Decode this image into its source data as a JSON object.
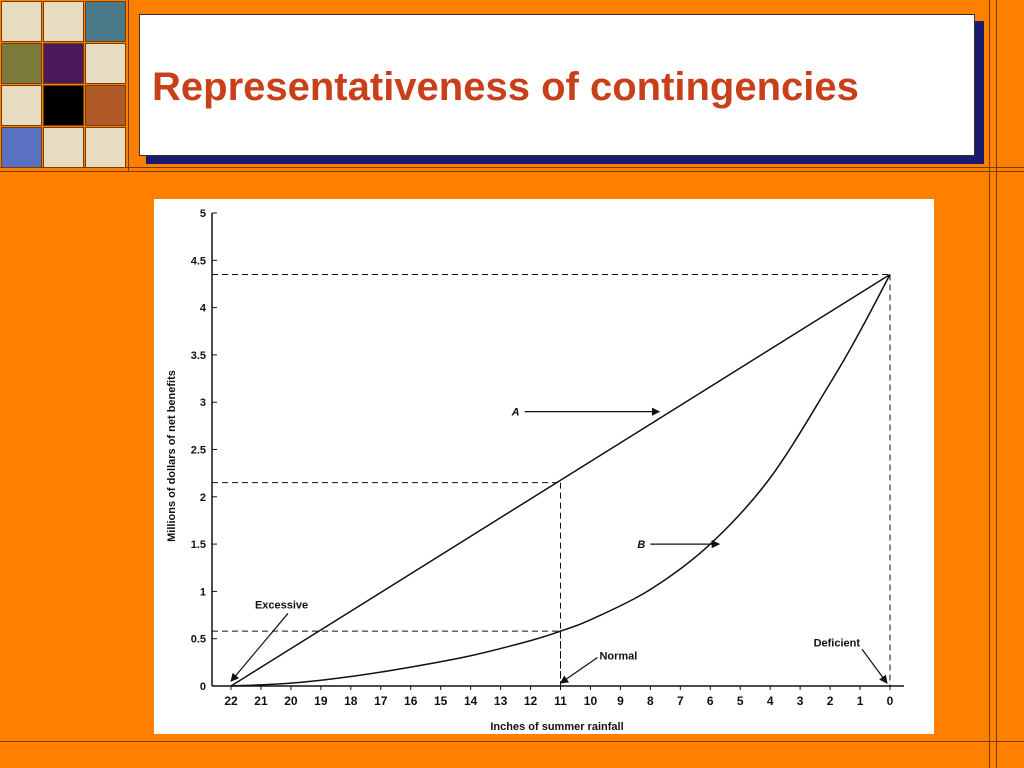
{
  "slide": {
    "title": "Representativeness of contingencies",
    "background_color": "#ff8000",
    "title_color": "#c8401a"
  },
  "decor": {
    "tile_colors": [
      [
        "#e8dcc0",
        "#e8dcc0",
        "#4a7a8a"
      ],
      [
        "#7a7a3a",
        "#4a1a5a",
        "#e8dcc0"
      ],
      [
        "#e8dcc0",
        "#000000",
        "#b05a28"
      ],
      [
        "#5a70c0",
        "#e8dcc0",
        "#e8dcc0"
      ]
    ]
  },
  "chart_data": {
    "type": "line",
    "title": "",
    "xlabel": "Inches of summer rainfall",
    "ylabel": "Millions of dollars of net benefits",
    "x_ticks": [
      22,
      21,
      20,
      19,
      18,
      17,
      16,
      15,
      14,
      13,
      12,
      11,
      10,
      9,
      8,
      7,
      6,
      5,
      4,
      3,
      2,
      1,
      0
    ],
    "x_reversed": true,
    "xlim": [
      22,
      0
    ],
    "y_ticks": [
      "0",
      "0.5",
      "1",
      "1.5",
      "2",
      "2.5",
      "3",
      "3.5",
      "4",
      "4.5",
      "5"
    ],
    "ylim": [
      0,
      5
    ],
    "series": [
      {
        "name": "A",
        "x": [
          22,
          0
        ],
        "y": [
          0,
          4.35
        ]
      },
      {
        "name": "B",
        "x": [
          22,
          20,
          18,
          16,
          14,
          12,
          11,
          10,
          8,
          6,
          4,
          2,
          1,
          0
        ],
        "y": [
          0,
          0.03,
          0.1,
          0.2,
          0.32,
          0.48,
          0.58,
          0.7,
          1.02,
          1.5,
          2.2,
          3.2,
          3.75,
          4.35
        ]
      }
    ],
    "reference_lines": [
      {
        "x": 11,
        "y": 2.15
      },
      {
        "x": 11,
        "y": 0.58
      },
      {
        "x": 0,
        "y": 4.35
      }
    ],
    "annotations": [
      {
        "text": "A",
        "x": 12.5,
        "y": 2.9,
        "target_x": 7.7,
        "target_y": 2.9
      },
      {
        "text": "B",
        "x": 8.3,
        "y": 1.5,
        "target_x": 5.7,
        "target_y": 1.5
      },
      {
        "text": "Excessive",
        "x": 21.2,
        "y": 0.82,
        "target_x": 22,
        "target_y": 0.05
      },
      {
        "text": "Normal",
        "x": 9.7,
        "y": 0.28,
        "target_x": 11,
        "target_y": 0.03
      },
      {
        "text": "Deficient",
        "x": 1.0,
        "y": 0.42,
        "target_x": 0.1,
        "target_y": 0.03
      }
    ],
    "grid": false,
    "legend": "none"
  }
}
